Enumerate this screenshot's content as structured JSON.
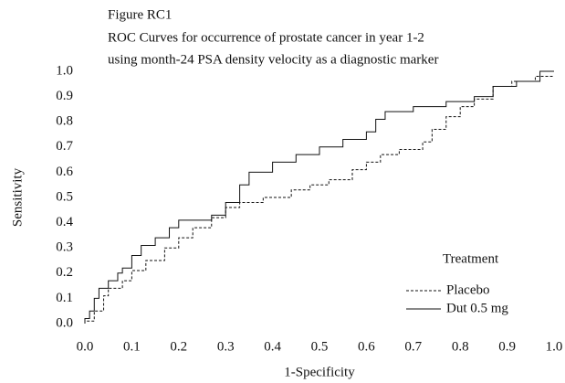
{
  "chart_data": {
    "type": "line",
    "figure_label": "Figure RC1",
    "title_lines": [
      "ROC Curves for occurrence of prostate cancer in year 1-2",
      "using month-24 PSA density velocity as a diagnostic marker"
    ],
    "x_label": "1-Specificity",
    "y_label": "Sensitivity",
    "legend_title": "Treatment",
    "legend_position": "lower right",
    "xlim": [
      0,
      1
    ],
    "ylim": [
      0,
      1
    ],
    "xticks": [
      {
        "value": 0,
        "label": "0.0"
      },
      0.1,
      0.2,
      0.3,
      0.4,
      0.5,
      0.6,
      0.7,
      0.8,
      0.9,
      {
        "value": 1,
        "label": "1.0"
      }
    ],
    "yticks": [
      {
        "value": 0,
        "label": "0.0"
      },
      0.1,
      0.2,
      0.3,
      0.4,
      0.5,
      0.6,
      0.7,
      0.8,
      0.9,
      {
        "value": 1,
        "label": "1.0"
      }
    ],
    "series": [
      {
        "name": "Placebo",
        "color": "#111111",
        "dash": "dashed",
        "x": [
          0,
          0,
          0.02,
          0.02,
          0.04,
          0.04,
          0.05,
          0.05,
          0.08,
          0.08,
          0.1,
          0.1,
          0.13,
          0.13,
          0.17,
          0.17,
          0.2,
          0.2,
          0.23,
          0.23,
          0.27,
          0.27,
          0.3,
          0.3,
          0.33,
          0.33,
          0.38,
          0.38,
          0.44,
          0.44,
          0.48,
          0.48,
          0.52,
          0.52,
          0.57,
          0.57,
          0.6,
          0.6,
          0.63,
          0.63,
          0.67,
          0.67,
          0.72,
          0.72,
          0.74,
          0.74,
          0.77,
          0.77,
          0.8,
          0.8,
          0.83,
          0.83,
          0.87,
          0.87,
          0.91,
          0.91,
          0.96,
          0.96,
          1.0
        ],
        "values": [
          0,
          0.01,
          0.01,
          0.05,
          0.05,
          0.11,
          0.11,
          0.14,
          0.14,
          0.17,
          0.17,
          0.21,
          0.21,
          0.25,
          0.25,
          0.3,
          0.3,
          0.34,
          0.34,
          0.38,
          0.38,
          0.42,
          0.42,
          0.46,
          0.46,
          0.48,
          0.48,
          0.5,
          0.5,
          0.53,
          0.53,
          0.55,
          0.55,
          0.57,
          0.57,
          0.61,
          0.61,
          0.64,
          0.64,
          0.67,
          0.67,
          0.69,
          0.69,
          0.72,
          0.72,
          0.77,
          0.77,
          0.82,
          0.82,
          0.86,
          0.86,
          0.89,
          0.89,
          0.94,
          0.94,
          0.96,
          0.96,
          0.98,
          0.98
        ]
      },
      {
        "name": "Dut 0.5 mg",
        "color": "#111111",
        "dash": "solid",
        "x": [
          0,
          0,
          0.01,
          0.01,
          0.02,
          0.02,
          0.03,
          0.03,
          0.05,
          0.05,
          0.07,
          0.07,
          0.08,
          0.08,
          0.1,
          0.1,
          0.12,
          0.12,
          0.15,
          0.15,
          0.18,
          0.18,
          0.2,
          0.2,
          0.27,
          0.27,
          0.3,
          0.3,
          0.33,
          0.33,
          0.35,
          0.35,
          0.4,
          0.4,
          0.45,
          0.45,
          0.5,
          0.5,
          0.55,
          0.55,
          0.6,
          0.6,
          0.62,
          0.62,
          0.64,
          0.64,
          0.7,
          0.7,
          0.77,
          0.77,
          0.83,
          0.83,
          0.87,
          0.87,
          0.92,
          0.92,
          0.97,
          0.97,
          1.0
        ],
        "values": [
          0,
          0.02,
          0.02,
          0.05,
          0.05,
          0.1,
          0.1,
          0.14,
          0.14,
          0.17,
          0.17,
          0.2,
          0.2,
          0.22,
          0.22,
          0.27,
          0.27,
          0.31,
          0.31,
          0.34,
          0.34,
          0.38,
          0.38,
          0.41,
          0.41,
          0.43,
          0.43,
          0.48,
          0.48,
          0.55,
          0.55,
          0.6,
          0.6,
          0.64,
          0.64,
          0.67,
          0.67,
          0.7,
          0.7,
          0.73,
          0.73,
          0.76,
          0.76,
          0.81,
          0.81,
          0.84,
          0.84,
          0.86,
          0.86,
          0.88,
          0.88,
          0.9,
          0.9,
          0.94,
          0.94,
          0.96,
          0.96,
          1.0,
          1.0
        ]
      }
    ]
  }
}
